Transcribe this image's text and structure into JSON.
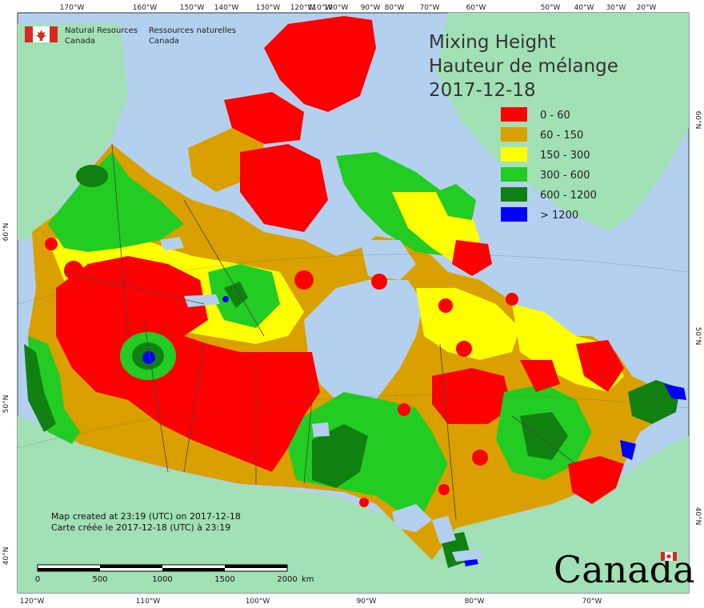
{
  "map": {
    "title_en": "Mixing Height",
    "title_fr": "Hauteur de mélange",
    "date": "2017-12-18",
    "agency_en_line1": "Natural Resources",
    "agency_en_line2": "Canada",
    "agency_fr_line1": "Ressources naturelles",
    "agency_fr_line2": "Canada",
    "created_en": "Map created at 23:19 (UTC) on 2017-12-18",
    "created_fr": "Carte créée le 2017-12-18 (UTC) à 23:19",
    "wordmark": "Canada",
    "colors": {
      "ocean": "#b3d1ef",
      "land_outside": "#a2e0b6",
      "class_0_60": "#ff0000",
      "class_60_150": "#d9a000",
      "class_150_300": "#ffff00",
      "class_300_600": "#22cc22",
      "class_600_1200": "#108010",
      "class_1200": "#0000ff",
      "lakes": "#b3d1ef"
    }
  },
  "legend": {
    "items": [
      {
        "label": "0 - 60",
        "color": "#ff0000"
      },
      {
        "label": "60 - 150",
        "color": "#d9a000"
      },
      {
        "label": "150 - 300",
        "color": "#ffff00"
      },
      {
        "label": "300 - 600",
        "color": "#22cc22"
      },
      {
        "label": "600 - 1200",
        "color": "#108010"
      },
      {
        "label": "> 1200",
        "color": "#0000ff"
      }
    ]
  },
  "graticule": {
    "top_labels": [
      "170°W",
      "160°W",
      "150°W",
      "140°W",
      "130°W",
      "120°W",
      "110°W",
      "100°W",
      "90°W",
      "80°W",
      "70°W",
      "60°W",
      "50°W",
      "40°W",
      "30°W",
      "20°W"
    ],
    "bottom_labels": [
      "120°W",
      "110°W",
      "100°W",
      "90°W",
      "80°W",
      "70°W"
    ],
    "left_labels": [
      "60°N",
      "50°N",
      "40°N"
    ],
    "right_labels": [
      "60°N",
      "50°N",
      "40°N"
    ]
  },
  "scale_bar": {
    "labels": [
      "0",
      "500",
      "1000",
      "1500",
      "2000"
    ],
    "unit": "km"
  }
}
